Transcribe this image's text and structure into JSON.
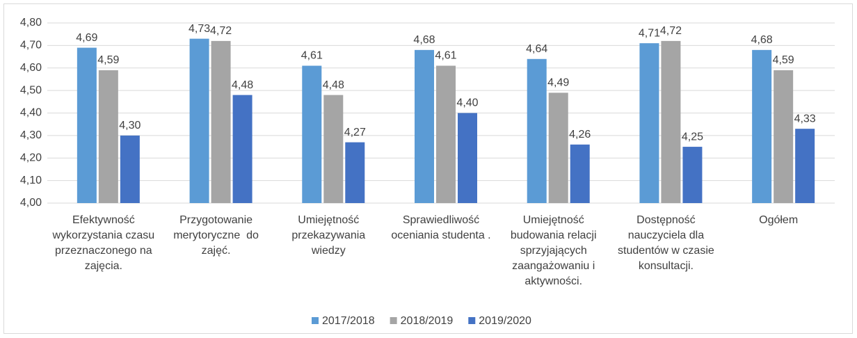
{
  "chart_data": {
    "type": "bar",
    "categories": [
      "Efektywność wykorzystania czasu przeznaczonego na zajęcia.",
      "Przygotowanie merytoryczne  do zajęć.",
      "Umiejętność przekazywania wiedzy",
      "Sprawiedliwość oceniania studenta .",
      "Umiejętność budowania relacji sprzyjających zaangażowaniu i aktywności.",
      "Dostępność nauczyciela dla studentów w czasie konsultacji.",
      "Ogółem"
    ],
    "series": [
      {
        "name": "2017/2018",
        "color": "#5b9bd5",
        "values": [
          4.69,
          4.73,
          4.61,
          4.68,
          4.64,
          4.71,
          4.68
        ],
        "value_labels": [
          "4,69",
          "4,73",
          "4,61",
          "4,68",
          "4,64",
          "4,71",
          "4,68"
        ]
      },
      {
        "name": "2018/2019",
        "color": "#a5a5a5",
        "values": [
          4.59,
          4.72,
          4.48,
          4.61,
          4.49,
          4.72,
          4.59
        ],
        "value_labels": [
          "4,59",
          "4,72",
          "4,48",
          "4,61",
          "4,49",
          "4,72",
          "4,59"
        ]
      },
      {
        "name": "2019/2020",
        "color": "#4472c4",
        "values": [
          4.3,
          4.48,
          4.27,
          4.4,
          4.26,
          4.25,
          4.33
        ],
        "value_labels": [
          "4,30",
          "4,48",
          "4,27",
          "4,40",
          "4,26",
          "4,25",
          "4,33"
        ]
      }
    ],
    "ylim": [
      4.0,
      4.8
    ],
    "yticks": [
      {
        "value": 4.0,
        "label": "4,00"
      },
      {
        "value": 4.1,
        "label": "4,10"
      },
      {
        "value": 4.2,
        "label": "4,20"
      },
      {
        "value": 4.3,
        "label": "4,30"
      },
      {
        "value": 4.4,
        "label": "4,40"
      },
      {
        "value": 4.5,
        "label": "4,50"
      },
      {
        "value": 4.6,
        "label": "4,60"
      },
      {
        "value": 4.7,
        "label": "4,70"
      },
      {
        "value": 4.8,
        "label": "4,80"
      }
    ],
    "grid": true,
    "legend": "bottom"
  }
}
